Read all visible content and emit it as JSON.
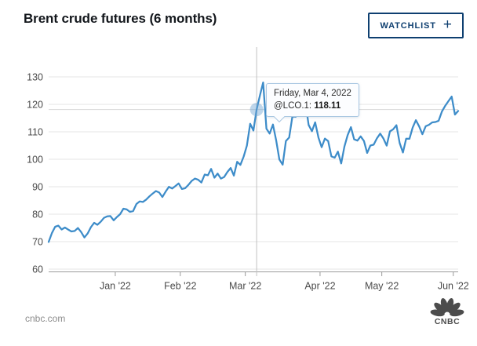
{
  "header": {
    "title": "Brent crude futures (6 months)",
    "watchlist_label": "WATCHLIST",
    "watchlist_plus": "+"
  },
  "tooltip": {
    "date": "Friday, Mar 4, 2022",
    "symbol_label": "@LCO.1:",
    "value": "118.11"
  },
  "footer": {
    "source": "cnbc.com",
    "logo_text": "CNBC"
  },
  "colors": {
    "line_blue": "#3d8cc9",
    "marker_fill": "rgba(110,165,210,0.45)",
    "navy": "#0e3f70",
    "gridline": "#e4e4e4",
    "axis": "#9a9a9a",
    "tick_text": "#4a4a4a",
    "crosshair_v": "#c2c2c2",
    "crosshair_h": "#d8d8d8",
    "logo": "#4c4c4c"
  },
  "chart_data": {
    "type": "line",
    "title": "Brent crude futures (6 months)",
    "xlabel": "",
    "ylabel": "",
    "ylim": [
      60,
      130
    ],
    "grid": true,
    "y_ticks": [
      60,
      70,
      80,
      90,
      100,
      110,
      120,
      130
    ],
    "x_tick_labels": [
      "Jan '22",
      "Feb '22",
      "Mar '22",
      "Apr '22",
      "May '22",
      "Jun '22"
    ],
    "x_tick_index_positions": [
      20.5,
      40.5,
      60.5,
      83.5,
      102.5,
      124.5
    ],
    "highlight": {
      "index": 64,
      "date": "Friday, Mar 4, 2022",
      "symbol": "@LCO.1",
      "value": 118.11
    },
    "series": [
      {
        "name": "@LCO.1",
        "values": [
          69.88,
          73.08,
          75.44,
          75.82,
          74.42,
          75.15,
          74.39,
          73.7,
          73.88,
          74.97,
          73.52,
          71.52,
          72.98,
          75.29,
          76.85,
          76.14,
          77.24,
          78.64,
          79.23,
          79.32,
          77.78,
          78.98,
          80.0,
          81.99,
          81.75,
          80.87,
          81.13,
          83.72,
          84.67,
          84.47,
          85.32,
          86.48,
          87.51,
          88.44,
          87.89,
          86.27,
          88.2,
          89.96,
          89.34,
          90.25,
          91.21,
          89.16,
          89.47,
          90.65,
          92.11,
          92.97,
          92.53,
          91.55,
          94.44,
          94.17,
          96.48,
          93.28,
          94.81,
          92.97,
          93.54,
          95.39,
          96.84,
          94.05,
          99.08,
          97.93,
          100.99,
          104.97,
          112.93,
          110.46,
          118.11,
          123.21,
          127.98,
          111.14,
          109.33,
          112.67,
          106.9,
          99.91,
          98.02,
          106.64,
          107.93,
          115.62,
          115.48,
          121.6,
          119.03,
          120.65,
          112.48,
          110.23,
          113.45,
          107.91,
          104.39,
          107.53,
          106.64,
          101.07,
          100.58,
          102.78,
          98.48,
          104.64,
          108.78,
          111.7,
          107.25,
          106.8,
          108.33,
          106.65,
          102.32,
          104.99,
          105.32,
          107.59,
          109.34,
          107.58,
          104.97,
          110.14,
          110.9,
          112.39,
          105.94,
          102.46,
          107.51,
          107.45,
          111.55,
          114.24,
          111.93,
          109.11,
          112.04,
          112.55,
          113.42,
          113.56,
          114.03,
          117.4,
          119.43,
          121.17,
          122.84,
          116.29,
          117.61
        ]
      }
    ]
  }
}
